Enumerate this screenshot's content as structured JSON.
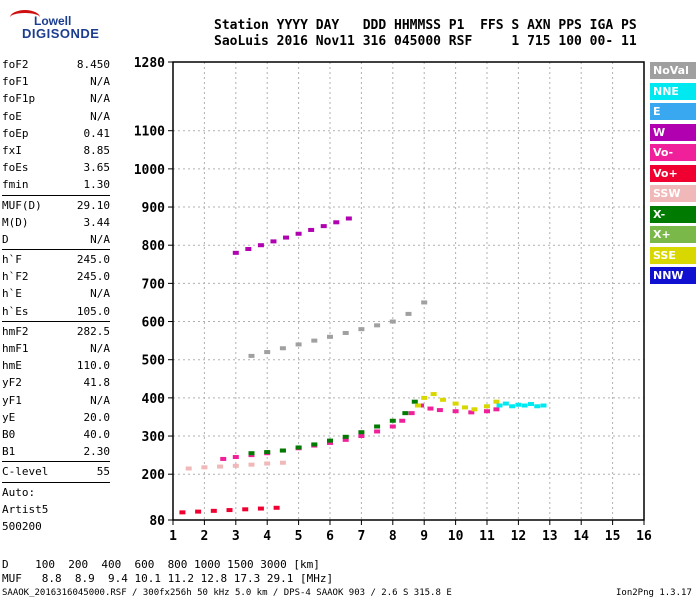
{
  "logo": {
    "line1": "Lowell",
    "line2": "DIGISONDE"
  },
  "header": {
    "row1": "Station YYYY DAY   DDD HHMMSS P1  FFS S AXN PPS IGA PS",
    "row2": "SaoLuis 2016 Nov11 316 045000 RSF     1 715 100 00- 11"
  },
  "params": {
    "group1": [
      {
        "k": "foF2",
        "v": "8.450"
      },
      {
        "k": "foF1",
        "v": "N/A"
      },
      {
        "k": "foF1p",
        "v": "N/A"
      },
      {
        "k": "foE",
        "v": "N/A"
      },
      {
        "k": "foEp",
        "v": "0.41"
      },
      {
        "k": "fxI",
        "v": "8.85"
      },
      {
        "k": "foEs",
        "v": "3.65"
      },
      {
        "k": "fmin",
        "v": "1.30"
      }
    ],
    "group2": [
      {
        "k": "MUF(D)",
        "v": "29.10"
      },
      {
        "k": "M(D)",
        "v": "3.44"
      },
      {
        "k": "D",
        "v": "N/A"
      }
    ],
    "group3": [
      {
        "k": "h`F",
        "v": "245.0"
      },
      {
        "k": "h`F2",
        "v": "245.0"
      },
      {
        "k": "h`E",
        "v": "N/A"
      },
      {
        "k": "h`Es",
        "v": "105.0"
      }
    ],
    "group4": [
      {
        "k": "hmF2",
        "v": "282.5"
      },
      {
        "k": "hmF1",
        "v": "N/A"
      },
      {
        "k": "hmE",
        "v": "110.0"
      },
      {
        "k": "yF2",
        "v": "41.8"
      },
      {
        "k": "yF1",
        "v": "N/A"
      },
      {
        "k": "yE",
        "v": "20.0"
      },
      {
        "k": "B0",
        "v": "40.0"
      },
      {
        "k": "B1",
        "v": "2.30"
      }
    ],
    "group5": [
      {
        "k": "C-level",
        "v": "55"
      }
    ],
    "autoscale": [
      "Auto:",
      "Artist5",
      "500200"
    ]
  },
  "legend": [
    {
      "label": "NoVal",
      "color": "#a0a0a0"
    },
    {
      "label": "NNE",
      "color": "#00e8f0"
    },
    {
      "label": "E",
      "color": "#3aa8f0"
    },
    {
      "label": "W",
      "color": "#b000b0"
    },
    {
      "label": "Vo-",
      "color": "#f0209a"
    },
    {
      "label": "Vo+",
      "color": "#f00030"
    },
    {
      "label": "SSW",
      "color": "#f0b8b8"
    },
    {
      "label": "X-",
      "color": "#007a00"
    },
    {
      "label": "X+",
      "color": "#7ab84a"
    },
    {
      "label": "SSE",
      "color": "#d8d800"
    },
    {
      "label": "NNW",
      "color": "#1010d0"
    }
  ],
  "footer": {
    "line1": "D    100  200  400  600  800 1000 1500 3000 [km]",
    "line2": "MUF   8.8  8.9  9.4 10.1 11.2 12.8 17.3 29.1 [MHz]",
    "line3": "SAAOK_2016316045000.RSF / 300fx256h 50 kHz 5.0 km / DPS-4 SAAOK 903 / 2.6 S 315.8 E",
    "version": "Ion2Png 1.3.17"
  },
  "chart_data": {
    "type": "scatter",
    "x_ticks": [
      "1",
      "2",
      "3",
      "4",
      "5",
      "6",
      "7",
      "8",
      "9",
      "10",
      "11",
      "12",
      "13",
      "14",
      "15",
      "16"
    ],
    "y_ticks": [
      "80",
      "200",
      "300",
      "400",
      "500",
      "600",
      "700",
      "800",
      "900",
      "1000",
      "1100",
      "1280"
    ],
    "xlim": [
      1,
      16
    ],
    "ylim": [
      80,
      1280
    ],
    "grid": true,
    "series": [
      {
        "name": "Vo-",
        "color": "#f0209a",
        "x": [
          2.6,
          3.0,
          3.5,
          4.0,
          4.5,
          5.0,
          5.5,
          6.0,
          6.5,
          7.0,
          7.5,
          8.0,
          8.3,
          8.6,
          8.9,
          9.2,
          9.5,
          10.0,
          10.5,
          11.0,
          11.3
        ],
        "y": [
          240,
          245,
          250,
          255,
          262,
          268,
          275,
          282,
          290,
          300,
          312,
          325,
          340,
          360,
          380,
          372,
          368,
          365,
          362,
          365,
          370
        ]
      },
      {
        "name": "X-",
        "color": "#007a00",
        "x": [
          3.5,
          4.0,
          4.5,
          5.0,
          5.5,
          6.0,
          6.5,
          7.0,
          7.5,
          8.0,
          8.4,
          8.7
        ],
        "y": [
          255,
          258,
          262,
          270,
          278,
          288,
          298,
          310,
          325,
          340,
          360,
          390
        ]
      },
      {
        "name": "SSE",
        "color": "#d8d800",
        "x": [
          8.8,
          9.0,
          9.3,
          9.6,
          10.0,
          10.3,
          10.6,
          11.0,
          11.3
        ],
        "y": [
          380,
          400,
          410,
          395,
          385,
          375,
          370,
          378,
          390
        ]
      },
      {
        "name": "NNE",
        "color": "#00e8f0",
        "x": [
          11.4,
          11.6,
          11.8,
          12.0,
          12.2,
          12.4,
          12.6,
          12.8
        ],
        "y": [
          380,
          385,
          378,
          382,
          380,
          384,
          378,
          380
        ]
      },
      {
        "name": "W",
        "color": "#b000b0",
        "x": [
          3.0,
          3.4,
          3.8,
          4.2,
          4.6,
          5.0,
          5.4,
          5.8,
          6.2,
          6.6
        ],
        "y": [
          780,
          790,
          800,
          810,
          820,
          830,
          840,
          850,
          860,
          870
        ]
      },
      {
        "name": "NoVal",
        "color": "#a0a0a0",
        "x": [
          3.5,
          4.0,
          4.5,
          5.0,
          5.5,
          6.0,
          6.5,
          7.0,
          7.5,
          8.0,
          8.5,
          9.0
        ],
        "y": [
          510,
          520,
          530,
          540,
          550,
          560,
          570,
          580,
          590,
          600,
          620,
          650
        ]
      },
      {
        "name": "Vo+",
        "color": "#f00030",
        "x": [
          1.3,
          1.8,
          2.3,
          2.8,
          3.3,
          3.8,
          4.3
        ],
        "y": [
          100,
          102,
          104,
          106,
          108,
          110,
          112
        ]
      },
      {
        "name": "SSW",
        "color": "#f0b8b8",
        "x": [
          1.5,
          2.0,
          2.5,
          3.0,
          3.5,
          4.0,
          4.5
        ],
        "y": [
          215,
          218,
          220,
          222,
          225,
          228,
          230
        ]
      }
    ]
  }
}
